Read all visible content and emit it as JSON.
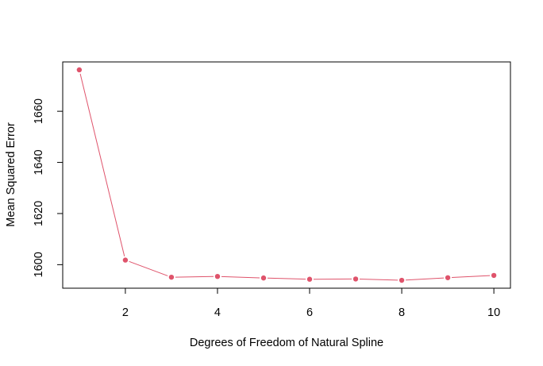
{
  "chart_data": {
    "type": "line",
    "title": "",
    "xlabel": "Degrees of Freedom of Natural Spline",
    "ylabel": "Mean Squared Error",
    "x": [
      1,
      2,
      3,
      4,
      5,
      6,
      7,
      8,
      9,
      10
    ],
    "series": [
      {
        "values": [
          1676.2,
          1601.8,
          1595.1,
          1595.4,
          1594.8,
          1594.3,
          1594.4,
          1593.9,
          1594.9,
          1595.8
        ],
        "color": "#DF536B",
        "marker": "filled-circle"
      }
    ],
    "xlim": [
      0.64,
      10.36
    ],
    "ylim": [
      1590.8,
      1679.3
    ],
    "xticks": [
      2,
      4,
      6,
      8,
      10
    ],
    "yticks": [
      1600,
      1620,
      1640,
      1660
    ],
    "grid": false,
    "legend": "none"
  }
}
